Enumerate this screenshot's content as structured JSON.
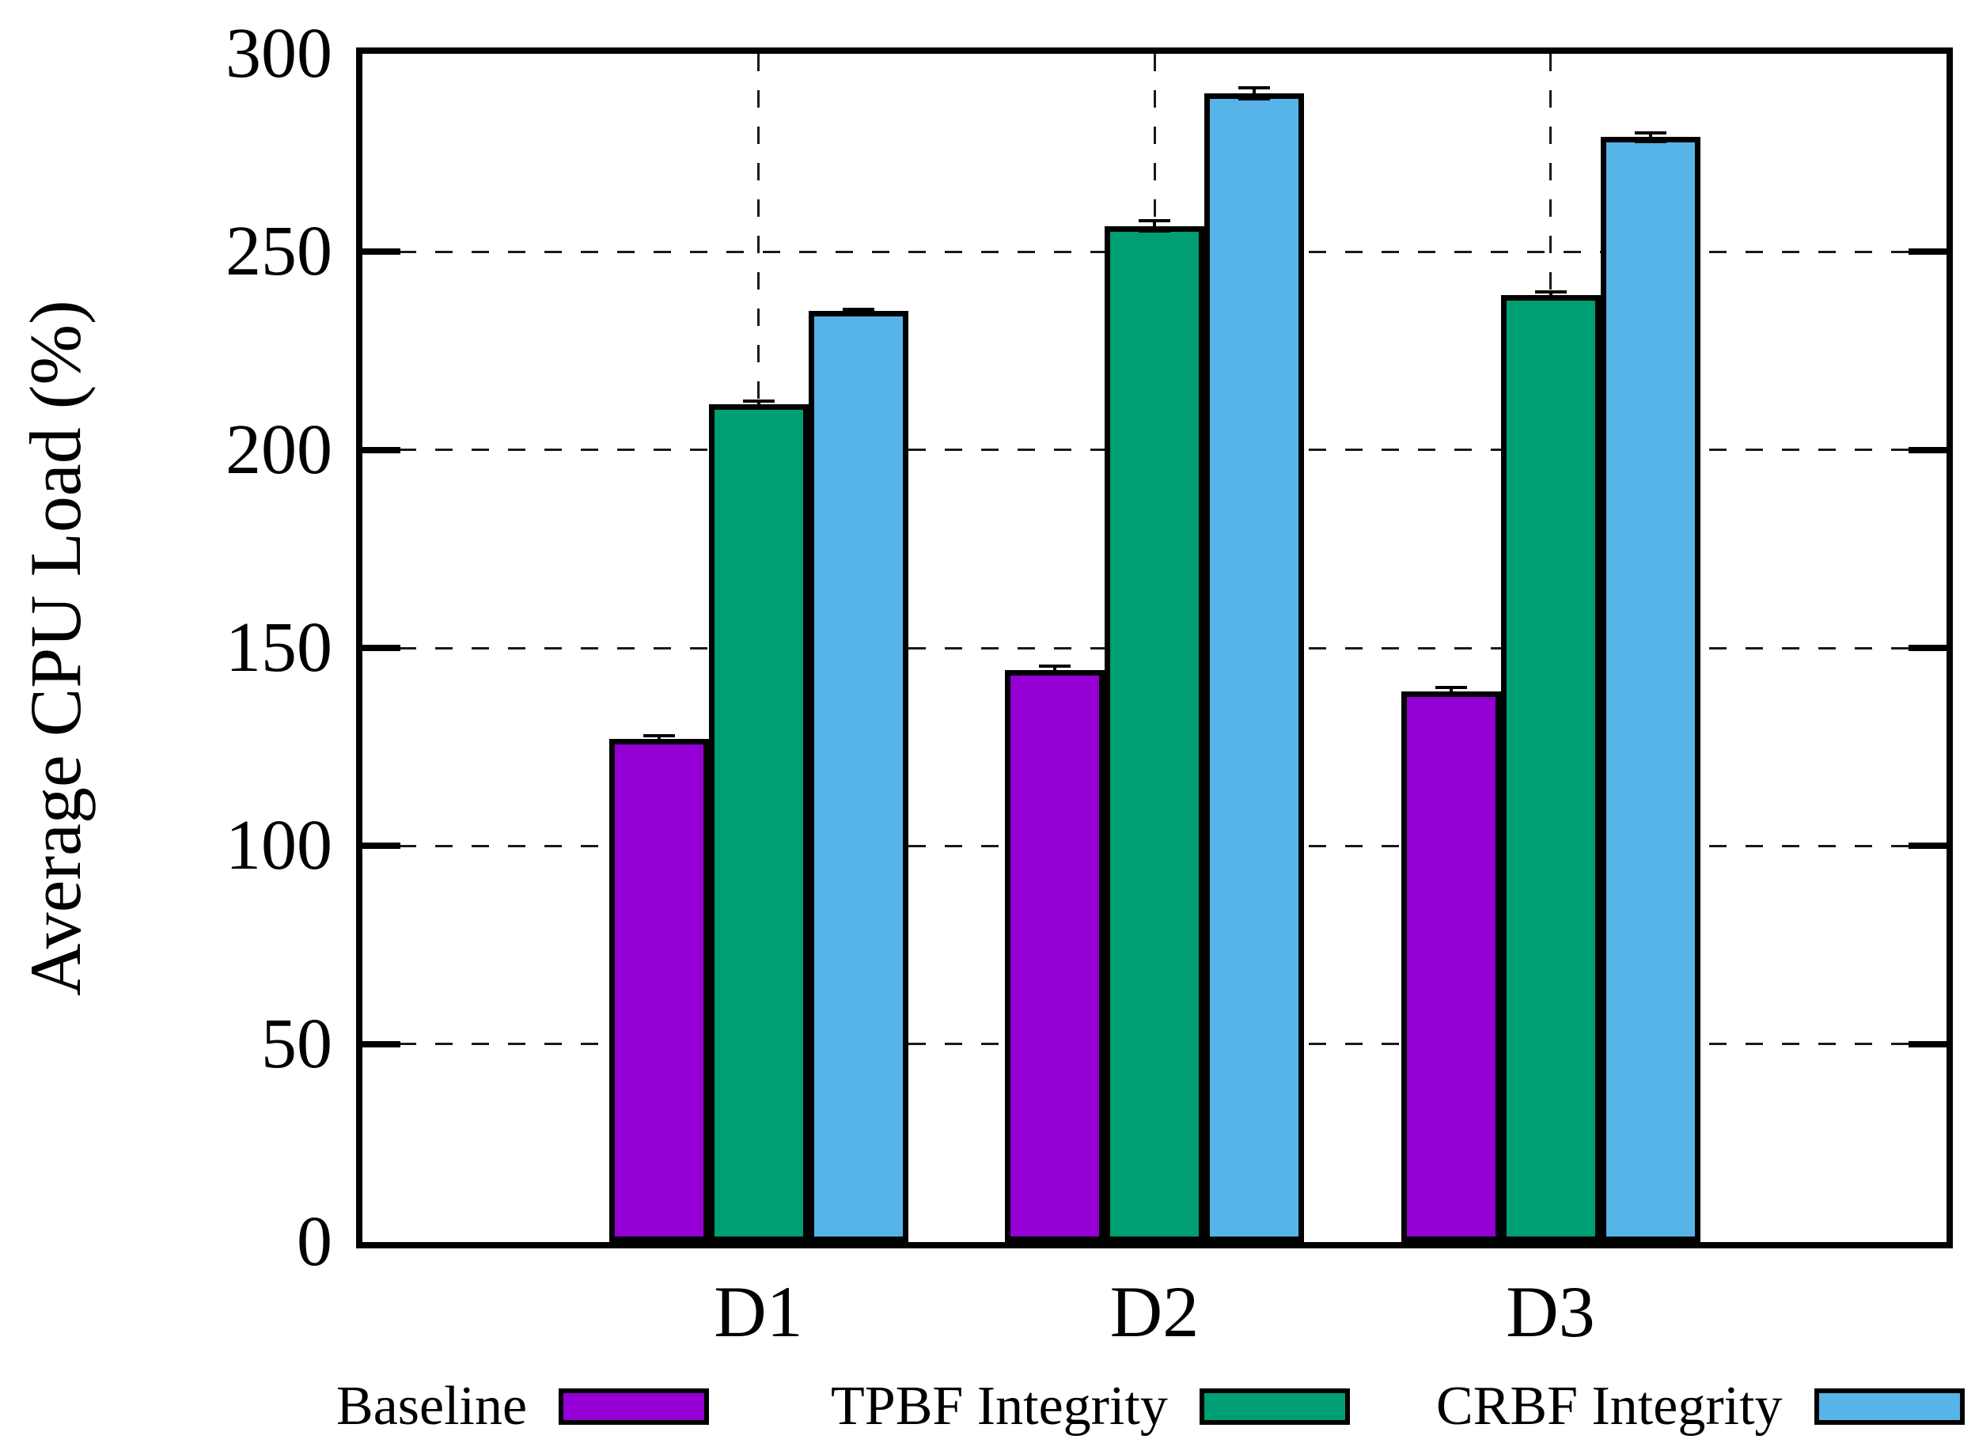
{
  "chart_data": {
    "type": "bar",
    "title": "",
    "xlabel": "",
    "ylabel": "Average CPU Load (%)",
    "categories": [
      "D1",
      "D2",
      "D3"
    ],
    "series": [
      {
        "name": "Baseline",
        "color": "#9400D3",
        "values": [
          127.0,
          144.5,
          139.0
        ],
        "errors": [
          1.3,
          1.4,
          1.4
        ]
      },
      {
        "name": "TPBF Integrity",
        "color": "#009E73",
        "values": [
          211.5,
          256.5,
          239.0
        ],
        "errors": [
          1.3,
          1.7,
          1.2
        ]
      },
      {
        "name": "CRBF Integrity",
        "color": "#56B4E9",
        "values": [
          235.0,
          290.0,
          279.0
        ],
        "errors": [
          0.8,
          1.8,
          1.5
        ]
      }
    ],
    "ylim": [
      0,
      300
    ],
    "yticks": [
      0,
      50,
      100,
      150,
      200,
      250,
      300
    ],
    "grid": true,
    "error_bars": true,
    "legend_position": "bottom",
    "bar_outline_color": "#000000",
    "background_color": "#ffffff"
  }
}
